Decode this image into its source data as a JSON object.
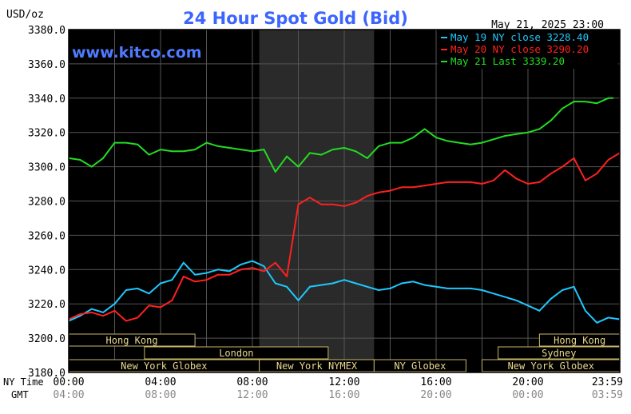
{
  "chart_data": {
    "type": "line",
    "title": "24 Hour Spot Gold (Bid)",
    "watermark": "www.kitco.com",
    "timestamp": "May 21, 2025 23:00",
    "ylabel": "USD/oz",
    "ylim": [
      3180,
      3380
    ],
    "yticks": [
      {
        "value": 3180,
        "label": "3180.0"
      },
      {
        "value": 3200,
        "label": "3200.0"
      },
      {
        "value": 3220,
        "label": "3220.0"
      },
      {
        "value": 3240,
        "label": "3240.0"
      },
      {
        "value": 3260,
        "label": "3260.0"
      },
      {
        "value": 3280,
        "label": "3280.0"
      },
      {
        "value": 3300,
        "label": "3300.0"
      },
      {
        "value": 3320,
        "label": "3320.0"
      },
      {
        "value": 3340,
        "label": "3340.0"
      },
      {
        "value": 3360,
        "label": "3360.0"
      },
      {
        "value": 3380,
        "label": "3380.0"
      }
    ],
    "xlim": [
      0,
      24
    ],
    "x_row_labels": {
      "ny": "NY Time",
      "gmt": "GMT"
    },
    "xticks": [
      {
        "value": 0,
        "ny": "00:00",
        "gmt": "04:00"
      },
      {
        "value": 4,
        "ny": "04:00",
        "gmt": "08:00"
      },
      {
        "value": 8,
        "ny": "08:00",
        "gmt": "12:00"
      },
      {
        "value": 12,
        "ny": "12:00",
        "gmt": "16:00"
      },
      {
        "value": 16,
        "ny": "16:00",
        "gmt": "20:00"
      },
      {
        "value": 20,
        "ny": "20:00",
        "gmt": "00:00"
      },
      {
        "value": 24,
        "ny": "23:59",
        "gmt": "03:59"
      }
    ],
    "shaded_range": [
      8.3,
      13.3
    ],
    "legend_position": "top-right",
    "sessions": [
      {
        "label": "Hong Kong",
        "start": 0,
        "end": 5.5,
        "row": 0
      },
      {
        "label": "Hong Kong",
        "start": 20.5,
        "end": 24,
        "row": 0
      },
      {
        "label": "London",
        "start": 3.3,
        "end": 11.3,
        "row": 1
      },
      {
        "label": "Sydney",
        "start": 18.7,
        "end": 24,
        "row": 1
      },
      {
        "label": "New York Globex",
        "start": 0,
        "end": 8.3,
        "row": 2
      },
      {
        "label": "New York NYMEX",
        "start": 8.3,
        "end": 13.3,
        "row": 2
      },
      {
        "label": "NY Globex",
        "start": 13.3,
        "end": 17.3,
        "row": 2
      },
      {
        "label": "New York Globex",
        "start": 18.0,
        "end": 24,
        "row": 2
      }
    ],
    "series": [
      {
        "name": "May 19 NY close 3228.40",
        "color": "#1ec8ff",
        "x": [
          0,
          0.5,
          1,
          1.5,
          2,
          2.5,
          3,
          3.5,
          4,
          4.5,
          5,
          5.5,
          6,
          6.5,
          7,
          7.5,
          8,
          8.5,
          9,
          9.5,
          10,
          10.5,
          11,
          11.5,
          12,
          12.5,
          13,
          13.5,
          14,
          14.5,
          15,
          15.5,
          16,
          16.5,
          17,
          17.5,
          18,
          18.5,
          19,
          19.5,
          20,
          20.5,
          21,
          21.5,
          22,
          22.5,
          23,
          23.5,
          24
        ],
        "values": [
          3210,
          3213,
          3217,
          3215,
          3220,
          3228,
          3229,
          3226,
          3232,
          3234,
          3244,
          3237,
          3238,
          3240,
          3239,
          3243,
          3245,
          3242,
          3232,
          3230,
          3222,
          3230,
          3231,
          3232,
          3234,
          3232,
          3230,
          3228,
          3229,
          3232,
          3233,
          3231,
          3230,
          3229,
          3229,
          3229,
          3228,
          3226,
          3224,
          3222,
          3219,
          3216,
          3223,
          3228,
          3230,
          3216,
          3209,
          3212,
          3211
        ]
      },
      {
        "name": "May 20 NY close 3290.20",
        "color": "#ff2020",
        "x": [
          0,
          0.5,
          1,
          1.5,
          2,
          2.5,
          3,
          3.5,
          4,
          4.5,
          5,
          5.5,
          6,
          6.5,
          7,
          7.5,
          8,
          8.5,
          9,
          9.5,
          10,
          10.5,
          11,
          11.5,
          12,
          12.5,
          13,
          13.5,
          14,
          14.5,
          15,
          15.5,
          16,
          16.5,
          17,
          17.5,
          18,
          18.5,
          19,
          19.5,
          20,
          20.5,
          21,
          21.5,
          22,
          22.5,
          23,
          23.5,
          24
        ],
        "values": [
          3211,
          3214,
          3215,
          3213,
          3216,
          3210,
          3212,
          3219,
          3218,
          3222,
          3236,
          3233,
          3234,
          3237,
          3237,
          3240,
          3241,
          3239,
          3244,
          3236,
          3278,
          3282,
          3278,
          3278,
          3277,
          3279,
          3283,
          3285,
          3286,
          3288,
          3288,
          3289,
          3290,
          3291,
          3291,
          3291,
          3290,
          3292,
          3298,
          3293,
          3290,
          3291,
          3296,
          3300,
          3305,
          3292,
          3296,
          3304,
          3308
        ]
      },
      {
        "name": "May 21 Last 3339.20",
        "color": "#22dd22",
        "x": [
          0,
          0.5,
          1,
          1.5,
          2,
          2.5,
          3,
          3.5,
          4,
          4.5,
          5,
          5.5,
          6,
          6.5,
          7,
          7.5,
          8,
          8.5,
          9,
          9.5,
          10,
          10.5,
          11,
          11.5,
          12,
          12.5,
          13,
          13.5,
          14,
          14.5,
          15,
          15.5,
          16,
          16.5,
          17,
          17.5,
          18,
          18.5,
          19,
          19.5,
          20,
          20.5,
          21,
          21.5,
          22,
          22.5,
          23,
          23.5,
          23.7
        ],
        "values": [
          3305,
          3304,
          3300,
          3305,
          3314,
          3314,
          3313,
          3307,
          3310,
          3309,
          3309,
          3310,
          3314,
          3312,
          3311,
          3310,
          3309,
          3310,
          3297,
          3306,
          3300,
          3308,
          3307,
          3310,
          3311,
          3309,
          3305,
          3312,
          3314,
          3314,
          3317,
          3322,
          3317,
          3315,
          3314,
          3313,
          3314,
          3316,
          3318,
          3319,
          3320,
          3322,
          3327,
          3334,
          3338,
          3338,
          3337,
          3340,
          3340
        ]
      }
    ]
  }
}
